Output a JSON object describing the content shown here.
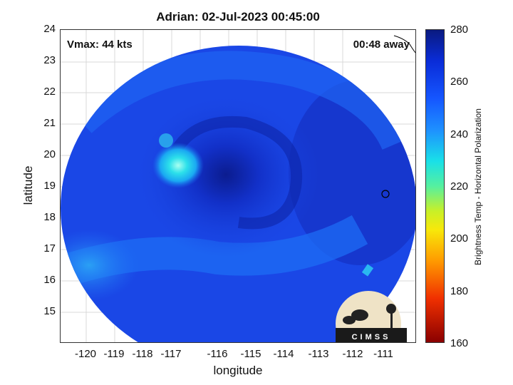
{
  "map": {
    "title": "Adrian: 02-Jul-2023 00:45:00",
    "vmax_label": "Vmax: 44 kts",
    "away_label": "00:48 away",
    "x_axis_label": "longitude",
    "y_axis_label": "latitude",
    "x_ticks": [
      "-120",
      "-119",
      "-118",
      "-117",
      "-116",
      "-115",
      "-114",
      "-113",
      "-112",
      "-111"
    ],
    "y_ticks": [
      "24",
      "23",
      "22",
      "21",
      "20",
      "19",
      "18",
      "17",
      "16",
      "15"
    ],
    "colorbar_label": "Brightness Temp - Horizontal Polarization",
    "colorbar_ticks": [
      "280",
      "260",
      "240",
      "220",
      "200",
      "180",
      "160"
    ],
    "logo_text": "CIMSS",
    "colors": {
      "swath_base": "#1a47e6",
      "eye_dark": "#0b1f9a",
      "band_light": "#1f6ff5",
      "convection": "#22d8e6"
    }
  }
}
